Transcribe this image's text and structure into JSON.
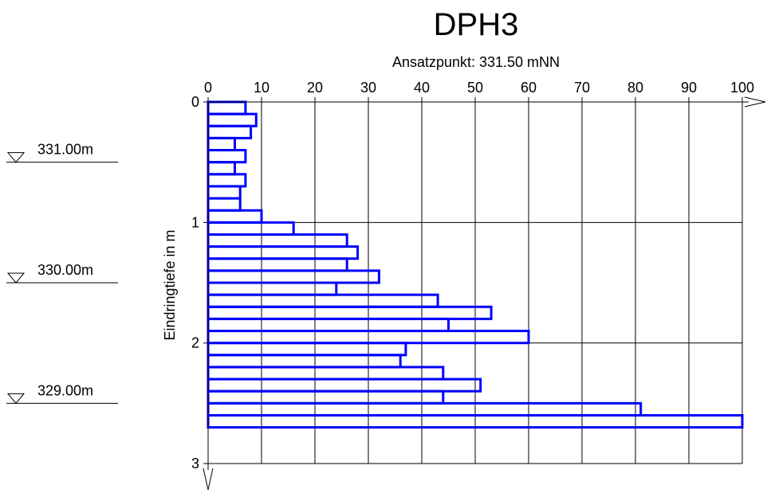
{
  "chart_data": {
    "type": "bar",
    "orientation": "horizontal",
    "title": "DPH3",
    "subtitle": "Ansatzpunkt: 331.50 mNN",
    "ylabel": "Eindringtiefe in m",
    "xlabel": "",
    "xlim": [
      0,
      100
    ],
    "ylim": [
      0,
      3
    ],
    "x_ticks": [
      "0",
      "10",
      "20",
      "30",
      "40",
      "50",
      "60",
      "70",
      "80",
      "90",
      "100"
    ],
    "y_ticks": [
      "0",
      "1",
      "2",
      "3"
    ],
    "grid": true,
    "bar_color": "#0000ff",
    "depth_step": 0.1,
    "bars": [
      {
        "depth_from": 0.0,
        "depth_to": 0.1,
        "value": 7
      },
      {
        "depth_from": 0.1,
        "depth_to": 0.2,
        "value": 9
      },
      {
        "depth_from": 0.2,
        "depth_to": 0.3,
        "value": 8
      },
      {
        "depth_from": 0.3,
        "depth_to": 0.4,
        "value": 5
      },
      {
        "depth_from": 0.4,
        "depth_to": 0.5,
        "value": 7
      },
      {
        "depth_from": 0.5,
        "depth_to": 0.6,
        "value": 5
      },
      {
        "depth_from": 0.6,
        "depth_to": 0.7,
        "value": 7
      },
      {
        "depth_from": 0.7,
        "depth_to": 0.8,
        "value": 6
      },
      {
        "depth_from": 0.8,
        "depth_to": 0.9,
        "value": 6
      },
      {
        "depth_from": 0.9,
        "depth_to": 1.0,
        "value": 10
      },
      {
        "depth_from": 1.0,
        "depth_to": 1.1,
        "value": 16
      },
      {
        "depth_from": 1.1,
        "depth_to": 1.2,
        "value": 26
      },
      {
        "depth_from": 1.2,
        "depth_to": 1.3,
        "value": 28
      },
      {
        "depth_from": 1.3,
        "depth_to": 1.4,
        "value": 26
      },
      {
        "depth_from": 1.4,
        "depth_to": 1.5,
        "value": 32
      },
      {
        "depth_from": 1.5,
        "depth_to": 1.6,
        "value": 24
      },
      {
        "depth_from": 1.6,
        "depth_to": 1.7,
        "value": 43
      },
      {
        "depth_from": 1.7,
        "depth_to": 1.8,
        "value": 53
      },
      {
        "depth_from": 1.8,
        "depth_to": 1.9,
        "value": 45
      },
      {
        "depth_from": 1.9,
        "depth_to": 2.0,
        "value": 60
      },
      {
        "depth_from": 2.0,
        "depth_to": 2.1,
        "value": 37
      },
      {
        "depth_from": 2.1,
        "depth_to": 2.2,
        "value": 36
      },
      {
        "depth_from": 2.2,
        "depth_to": 2.3,
        "value": 44
      },
      {
        "depth_from": 2.3,
        "depth_to": 2.4,
        "value": 51
      },
      {
        "depth_from": 2.4,
        "depth_to": 2.5,
        "value": 44
      },
      {
        "depth_from": 2.5,
        "depth_to": 2.6,
        "value": 81
      },
      {
        "depth_from": 2.6,
        "depth_to": 2.7,
        "value": 100
      }
    ],
    "elevation_markers": [
      {
        "label": "331.00m",
        "elevation": 331.0
      },
      {
        "label": "330.00m",
        "elevation": 330.0
      },
      {
        "label": "329.00m",
        "elevation": 329.0
      }
    ],
    "start_elevation": 331.5
  }
}
